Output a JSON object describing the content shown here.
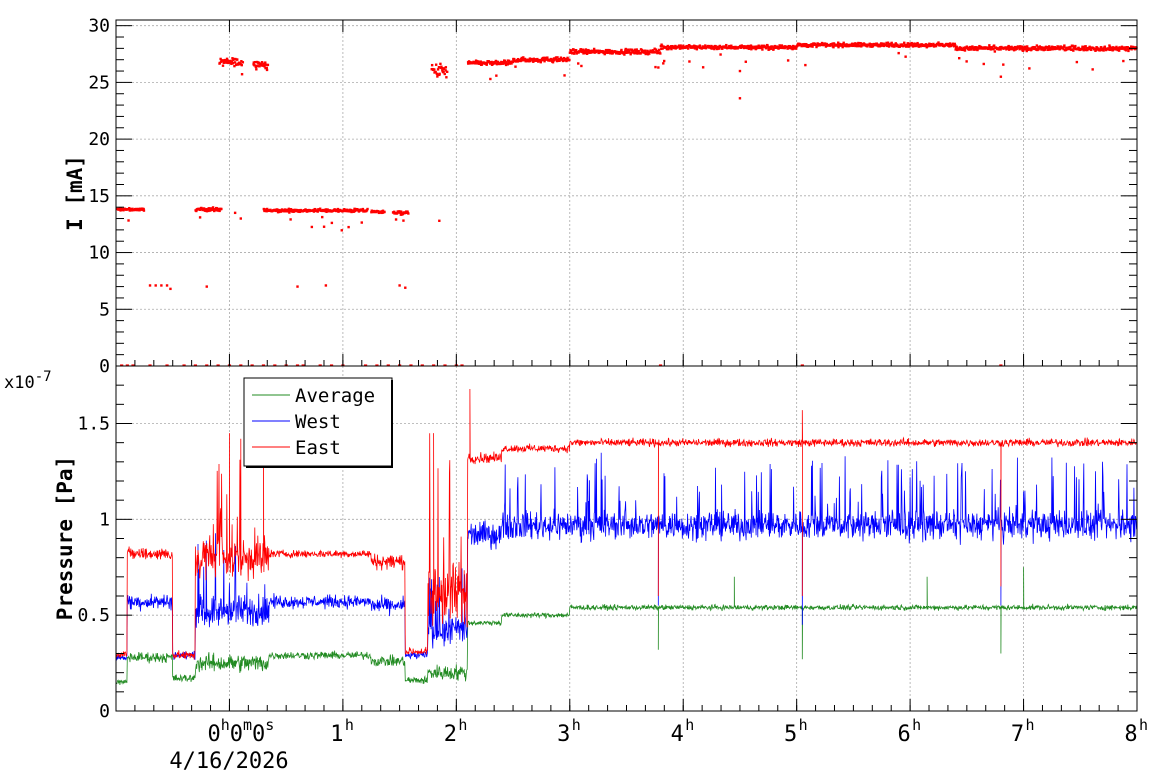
{
  "chart_data": [
    {
      "type": "scatter",
      "panel": "top",
      "ylabel": "I [mA]",
      "ylim": [
        0,
        30.5
      ],
      "yticks": [
        "0",
        "5",
        "10",
        "15",
        "20",
        "25",
        "30"
      ],
      "xlim": [
        -1.0,
        8.0
      ],
      "grid": true,
      "series": [
        {
          "color": "#ff0000",
          "segments": [
            {
              "x0": -0.99,
              "x1": -0.75,
              "y": 13.8,
              "jitter": 0.15
            },
            {
              "x0": -0.3,
              "x1": -0.07,
              "y": 13.8,
              "jitter": 0.2
            },
            {
              "x0": -0.09,
              "x1": 0.12,
              "y": 26.8,
              "jitter": 0.5
            },
            {
              "x0": 0.21,
              "x1": 0.34,
              "y": 26.6,
              "jitter": 0.5
            },
            {
              "x0": 0.3,
              "x1": 1.22,
              "y": 13.7,
              "jitter": 0.2
            },
            {
              "x0": 1.25,
              "x1": 1.37,
              "y": 13.6,
              "jitter": 0.2
            },
            {
              "x0": 1.44,
              "x1": 1.58,
              "y": 13.5,
              "jitter": 0.2
            },
            {
              "x0": 1.78,
              "x1": 1.92,
              "y": 26.0,
              "jitter": 1.0
            },
            {
              "x0": 2.1,
              "x1": 2.5,
              "y": 26.7,
              "jitter": 0.3
            },
            {
              "x0": 2.5,
              "x1": 3.0,
              "y": 27.0,
              "jitter": 0.3
            },
            {
              "x0": 3.0,
              "x1": 3.8,
              "y": 27.7,
              "jitter": 0.3
            },
            {
              "x0": 3.8,
              "x1": 5.0,
              "y": 28.1,
              "jitter": 0.25
            },
            {
              "x0": 5.0,
              "x1": 6.4,
              "y": 28.3,
              "jitter": 0.25
            },
            {
              "x0": 6.4,
              "x1": 8.0,
              "y": 28.0,
              "jitter": 0.3
            }
          ],
          "outliers": [
            [
              -0.7,
              7.1
            ],
            [
              -0.65,
              7.1
            ],
            [
              -0.6,
              7.1
            ],
            [
              -0.55,
              7.1
            ],
            [
              -0.52,
              6.8
            ],
            [
              -0.2,
              7.0
            ],
            [
              0.6,
              7.0
            ],
            [
              0.85,
              7.1
            ],
            [
              1.5,
              7.1
            ],
            [
              1.55,
              6.9
            ],
            [
              1.85,
              12.8
            ],
            [
              0.05,
              13.5
            ],
            [
              0.1,
              13.0
            ],
            [
              4.5,
              23.6
            ],
            [
              6.8,
              25.5
            ],
            [
              2.3,
              25.3
            ],
            [
              4.5,
              26.0
            ]
          ],
          "zero_points": [
            [
              -0.95,
              0
            ],
            [
              -0.9,
              0
            ],
            [
              -0.85,
              0
            ],
            [
              -0.7,
              0
            ],
            [
              -0.55,
              0
            ],
            [
              -0.4,
              0
            ],
            [
              -0.3,
              0
            ],
            [
              -0.2,
              0
            ],
            [
              -0.1,
              0
            ],
            [
              0.0,
              0
            ],
            [
              0.1,
              0
            ],
            [
              0.2,
              0
            ],
            [
              0.3,
              0
            ],
            [
              0.4,
              0
            ],
            [
              0.5,
              0
            ],
            [
              0.6,
              0
            ],
            [
              0.65,
              0
            ],
            [
              0.8,
              0
            ],
            [
              0.9,
              0
            ],
            [
              1.0,
              0
            ],
            [
              1.2,
              0
            ],
            [
              1.3,
              0
            ],
            [
              1.4,
              0
            ],
            [
              1.5,
              0
            ],
            [
              1.6,
              0
            ],
            [
              1.7,
              0
            ],
            [
              1.8,
              0
            ],
            [
              1.9,
              0
            ],
            [
              2.0,
              0
            ],
            [
              2.05,
              0
            ],
            [
              3.8,
              0
            ],
            [
              5.05,
              0
            ],
            [
              6.8,
              0
            ]
          ]
        }
      ]
    },
    {
      "type": "line",
      "panel": "bottom",
      "ylabel": "Pressure [Pa]",
      "exponent_label": "x10",
      "exponent_value": "-7",
      "ylim": [
        0,
        1.8
      ],
      "yticks": [
        "0",
        "0.5",
        "1",
        "1.5"
      ],
      "xlim": [
        -1.0,
        8.0
      ],
      "xticks": [
        "1",
        "2",
        "3",
        "4",
        "5",
        "6",
        "7",
        "8"
      ],
      "xtick_unit": "h",
      "origin_tick": {
        "h": "0",
        "m": "0",
        "s": "0"
      },
      "date_label": "4/16/2026",
      "grid": true,
      "legend_position": "top-left",
      "series": [
        {
          "name": "Average",
          "color": "#228b22",
          "segments": [
            {
              "x0": -1.0,
              "x1": -0.9,
              "y": 0.15,
              "noise": 0.02
            },
            {
              "x0": -0.9,
              "x1": -0.5,
              "y": 0.28,
              "noise": 0.04
            },
            {
              "x0": -0.5,
              "x1": -0.3,
              "y": 0.17,
              "noise": 0.03
            },
            {
              "x0": -0.3,
              "x1": 0.35,
              "y": 0.25,
              "noise": 0.07
            },
            {
              "x0": 0.35,
              "x1": 1.25,
              "y": 0.29,
              "noise": 0.03
            },
            {
              "x0": 1.25,
              "x1": 1.55,
              "y": 0.26,
              "noise": 0.04
            },
            {
              "x0": 1.55,
              "x1": 1.75,
              "y": 0.16,
              "noise": 0.03
            },
            {
              "x0": 1.75,
              "x1": 2.1,
              "y": 0.2,
              "noise": 0.06
            },
            {
              "x0": 2.1,
              "x1": 2.4,
              "y": 0.46,
              "noise": 0.02
            },
            {
              "x0": 2.4,
              "x1": 3.0,
              "y": 0.5,
              "noise": 0.02
            },
            {
              "x0": 3.0,
              "x1": 8.0,
              "y": 0.54,
              "noise": 0.02
            }
          ],
          "spikes": [
            [
              3.78,
              0.32
            ],
            [
              4.45,
              0.7
            ],
            [
              5.05,
              0.27
            ],
            [
              6.15,
              0.7
            ],
            [
              6.8,
              0.3
            ],
            [
              7.0,
              0.75
            ]
          ]
        },
        {
          "name": "West",
          "color": "#0000ff",
          "segments": [
            {
              "x0": -1.0,
              "x1": -0.9,
              "y": 0.28,
              "noise": 0.03
            },
            {
              "x0": -0.9,
              "x1": -0.5,
              "y": 0.57,
              "noise": 0.06
            },
            {
              "x0": -0.5,
              "x1": -0.3,
              "y": 0.29,
              "noise": 0.03
            },
            {
              "x0": -0.3,
              "x1": 0.35,
              "y": 0.52,
              "noise": 0.12
            },
            {
              "x0": 0.35,
              "x1": 1.25,
              "y": 0.57,
              "noise": 0.05
            },
            {
              "x0": 1.25,
              "x1": 1.55,
              "y": 0.55,
              "noise": 0.06
            },
            {
              "x0": 1.55,
              "x1": 1.75,
              "y": 0.29,
              "noise": 0.03
            },
            {
              "x0": 1.75,
              "x1": 2.1,
              "y": 0.42,
              "noise": 0.12
            },
            {
              "x0": 2.1,
              "x1": 2.4,
              "y": 0.92,
              "noise": 0.1
            },
            {
              "x0": 2.4,
              "x1": 8.0,
              "y": 0.97,
              "noise": 0.11
            }
          ],
          "spikes": [
            [
              3.78,
              0.55
            ],
            [
              5.05,
              0.45
            ],
            [
              6.8,
              0.55
            ]
          ]
        },
        {
          "name": "East",
          "color": "#ff0000",
          "segments": [
            {
              "x0": -1.0,
              "x1": -0.9,
              "y": 0.3,
              "noise": 0.03
            },
            {
              "x0": -0.9,
              "x1": -0.5,
              "y": 0.82,
              "noise": 0.05
            },
            {
              "x0": -0.5,
              "x1": -0.3,
              "y": 0.29,
              "noise": 0.03
            },
            {
              "x0": -0.3,
              "x1": 0.35,
              "y": 0.8,
              "noise": 0.18
            },
            {
              "x0": 0.35,
              "x1": 1.25,
              "y": 0.82,
              "noise": 0.03
            },
            {
              "x0": 1.25,
              "x1": 1.55,
              "y": 0.78,
              "noise": 0.06
            },
            {
              "x0": 1.55,
              "x1": 1.75,
              "y": 0.31,
              "noise": 0.03
            },
            {
              "x0": 1.75,
              "x1": 2.1,
              "y": 0.6,
              "noise": 0.25
            },
            {
              "x0": 2.1,
              "x1": 2.4,
              "y": 1.32,
              "noise": 0.04
            },
            {
              "x0": 2.4,
              "x1": 3.0,
              "y": 1.37,
              "noise": 0.03
            },
            {
              "x0": 3.0,
              "x1": 8.0,
              "y": 1.4,
              "noise": 0.03
            }
          ],
          "spikes": [
            [
              3.78,
              0.6
            ],
            [
              5.05,
              0.6
            ],
            [
              6.8,
              0.65
            ],
            [
              0.0,
              1.45
            ],
            [
              0.1,
              1.42
            ],
            [
              0.3,
              1.5
            ],
            [
              1.8,
              1.45
            ],
            [
              2.12,
              1.68
            ],
            [
              5.05,
              1.57
            ]
          ]
        }
      ]
    }
  ]
}
